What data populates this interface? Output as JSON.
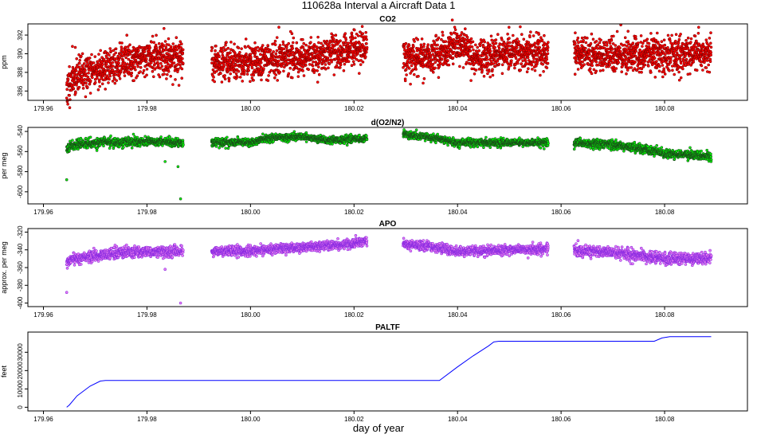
{
  "figure": {
    "title": "110628a   Interval a Aircraft Data 1",
    "xlabel": "day of year"
  },
  "colors": {
    "co2_fill": "#ff0000",
    "co2_edge": "#8b0000",
    "o2_fill": "#00ff00",
    "o2_edge": "#1a4d1a",
    "apo_fill": "#ee82ee",
    "apo_edge": "#8a2be2",
    "paltf_line": "#0000ff"
  },
  "chart_data": [
    {
      "type": "scatter",
      "title": "CO2",
      "xlabel": "",
      "ylabel": "ppm",
      "xlim": [
        179.957,
        180.096
      ],
      "ylim": [
        385.0,
        393.2
      ],
      "xticks": [
        "179.96",
        "179.98",
        "180.00",
        "180.02",
        "180.04",
        "180.06",
        "180.08"
      ],
      "yticks": [
        "386",
        "388",
        "390",
        "392"
      ],
      "segments": [
        {
          "x": [
            179.9645,
            179.966,
            179.97,
            179.975,
            179.98,
            179.9835,
            179.987
          ],
          "y": [
            386.2,
            387.6,
            388.2,
            389.0,
            389.8,
            389.6,
            389.4
          ],
          "noise": 1.0
        },
        {
          "x": [
            179.9925,
            180.0,
            180.01,
            180.015,
            180.0225
          ],
          "y": [
            389.0,
            389.3,
            389.6,
            390.0,
            390.6
          ],
          "noise": 0.9
        },
        {
          "x": [
            180.0295,
            180.035,
            180.0385,
            180.0415,
            180.043,
            180.047,
            180.05,
            180.0575
          ],
          "y": [
            389.5,
            389.6,
            390.6,
            391.0,
            389.3,
            389.8,
            390.3,
            389.9
          ],
          "noise": 0.9
        },
        {
          "x": [
            180.0625,
            180.07,
            180.08,
            180.089
          ],
          "y": [
            390.0,
            389.8,
            389.9,
            390.1
          ],
          "noise": 0.9
        }
      ]
    },
    {
      "type": "scatter",
      "title": "d(O2/N2)",
      "xlabel": "",
      "ylabel": "per meg",
      "xlim": [
        179.957,
        180.096
      ],
      "ylim": [
        -612,
        -536
      ],
      "xticks": [
        "179.96",
        "179.98",
        "180.00",
        "180.02",
        "180.04",
        "180.06",
        "180.08"
      ],
      "yticks": [
        "-600",
        "-580",
        "-560",
        "-540"
      ],
      "segments": [
        {
          "x": [
            179.9645,
            179.966,
            179.97,
            179.98,
            179.987
          ],
          "y": [
            -556,
            -553,
            -551,
            -550,
            -551
          ],
          "noise": 2.2
        },
        {
          "x": [
            179.9925,
            180.0,
            180.004,
            180.01,
            180.015,
            180.0225
          ],
          "y": [
            -551,
            -551,
            -546,
            -545,
            -549,
            -547
          ],
          "noise": 1.8
        },
        {
          "x": [
            180.0295,
            180.035,
            180.04,
            180.05,
            180.0575
          ],
          "y": [
            -543,
            -546,
            -551,
            -551,
            -551
          ],
          "noise": 1.8
        },
        {
          "x": [
            180.0625,
            180.07,
            180.075,
            180.08,
            180.085,
            180.089
          ],
          "y": [
            -551,
            -553,
            -557,
            -562,
            -563,
            -565
          ],
          "noise": 2.2
        }
      ],
      "outliers": [
        {
          "x": 179.9645,
          "y": -588
        },
        {
          "x": 179.9865,
          "y": -607
        },
        {
          "x": 179.986,
          "y": -575
        },
        {
          "x": 179.9835,
          "y": -570
        }
      ]
    },
    {
      "type": "scatter",
      "title": "APO",
      "xlabel": "",
      "ylabel": "approx. per meg",
      "xlim": [
        179.957,
        180.096
      ],
      "ylim": [
        -404,
        -316
      ],
      "xticks": [
        "179.96",
        "179.98",
        "180.00",
        "180.02",
        "180.04",
        "180.06",
        "180.08"
      ],
      "yticks": [
        "-400",
        "-380",
        "-360",
        "-340",
        "-320"
      ],
      "segments": [
        {
          "x": [
            179.9645,
            179.966,
            179.97,
            179.975,
            179.98,
            179.987
          ],
          "y": [
            -355,
            -350,
            -347,
            -343,
            -342,
            -342
          ],
          "noise": 3.0
        },
        {
          "x": [
            179.9925,
            180.0,
            180.01,
            180.02,
            180.0225
          ],
          "y": [
            -342,
            -341,
            -337,
            -333,
            -331
          ],
          "noise": 2.6
        },
        {
          "x": [
            180.0295,
            180.035,
            180.04,
            180.05,
            180.0575
          ],
          "y": [
            -334,
            -336,
            -342,
            -340,
            -339
          ],
          "noise": 2.6
        },
        {
          "x": [
            180.0625,
            180.07,
            180.08,
            180.089
          ],
          "y": [
            -341,
            -343,
            -350,
            -350
          ],
          "noise": 3.0
        }
      ],
      "outliers": [
        {
          "x": 179.9645,
          "y": -388
        },
        {
          "x": 179.9865,
          "y": -400
        },
        {
          "x": 179.9835,
          "y": -362
        }
      ]
    },
    {
      "type": "line",
      "title": "PALTF",
      "xlabel": "day of year",
      "ylabel": "feet",
      "xlim": [
        179.957,
        180.096
      ],
      "ylim": [
        -2000,
        41000
      ],
      "xticks": [
        "179.96",
        "179.98",
        "180.00",
        "180.02",
        "180.04",
        "180.06",
        "180.08"
      ],
      "yticks": [
        "0",
        "10000",
        "20000",
        "30000"
      ],
      "x": [
        179.9645,
        179.965,
        179.9665,
        179.969,
        179.971,
        179.972,
        180.0365,
        180.04,
        180.043,
        180.046,
        180.047,
        180.048,
        180.078,
        180.0795,
        180.081,
        180.089
      ],
      "y": [
        0,
        1200,
        6200,
        11500,
        14300,
        14600,
        14600,
        22000,
        28000,
        33500,
        35600,
        36000,
        36000,
        37800,
        38500,
        38500
      ]
    }
  ]
}
